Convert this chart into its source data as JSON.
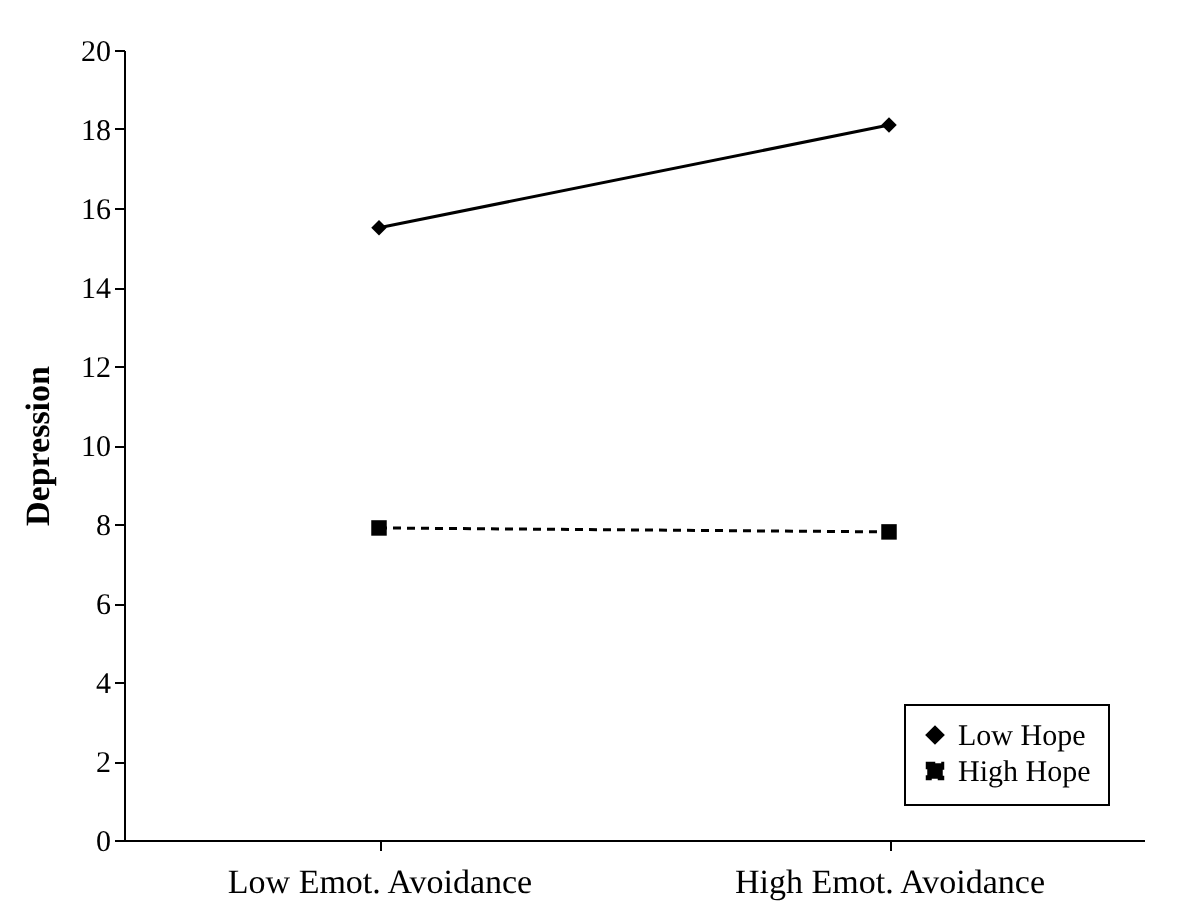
{
  "chart_data": {
    "type": "line",
    "ylabel": "Depression",
    "categories": [
      "Low Emot. Avoidance",
      "High Emot. Avoidance"
    ],
    "series": [
      {
        "name": "Low Hope",
        "color": "#000000",
        "values": [
          15.5,
          18.1
        ],
        "marker": "diamond",
        "line_style": "solid"
      },
      {
        "name": "High Hope",
        "color": "#000000",
        "values": [
          7.9,
          7.8
        ],
        "marker": "square",
        "line_style": "dashed"
      }
    ],
    "ylim": [
      0,
      20
    ],
    "yticks": [
      0,
      2,
      4,
      6,
      8,
      10,
      12,
      14,
      16,
      18,
      20
    ],
    "grid": false,
    "legend": "bottom right"
  }
}
